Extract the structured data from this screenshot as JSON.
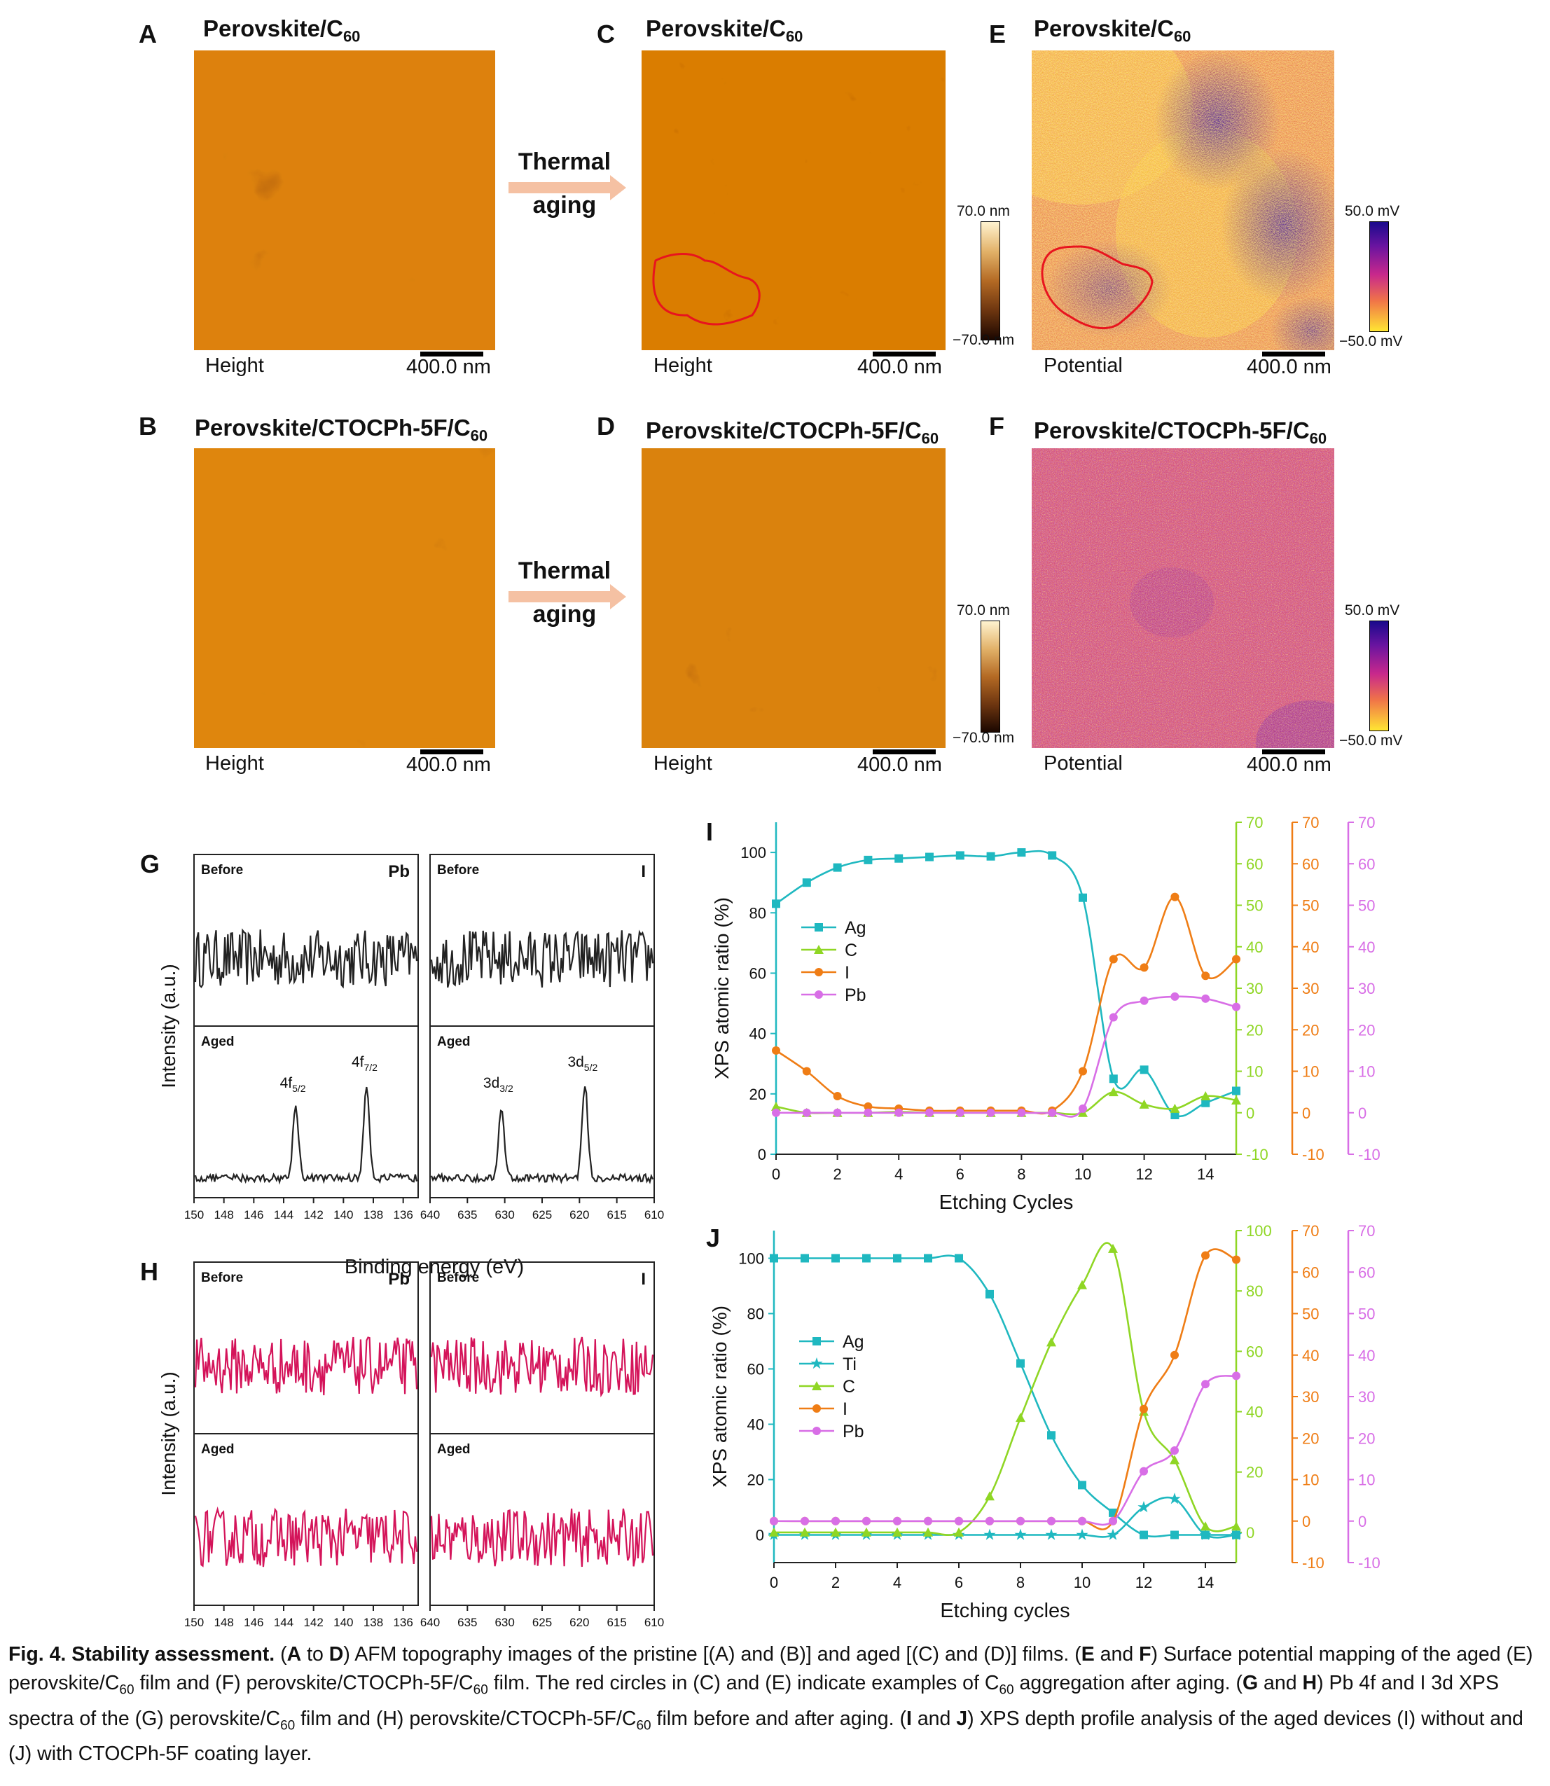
{
  "panels": {
    "A": {
      "letter": "A",
      "title": "Perovskite/C",
      "title_sub": "60",
      "label": "Height",
      "scale": "400.0 nm"
    },
    "B": {
      "letter": "B",
      "title": "Perovskite/CTOCPh-5F/C",
      "title_sub": "60",
      "label": "Height",
      "scale": "400.0 nm"
    },
    "C": {
      "letter": "C",
      "title": "Perovskite/C",
      "title_sub": "60",
      "label": "Height",
      "scale": "400.0 nm"
    },
    "D": {
      "letter": "D",
      "title": "Perovskite/CTOCPh-5F/C",
      "title_sub": "60",
      "label": "Height",
      "scale": "400.0 nm"
    },
    "E": {
      "letter": "E",
      "title": "Perovskite/C",
      "title_sub": "60",
      "label": "Potential",
      "scale": "400.0 nm"
    },
    "F": {
      "letter": "F",
      "title": "Perovskite/CTOCPh-5F/C",
      "title_sub": "60",
      "label": "Potential",
      "scale": "400.0 nm"
    }
  },
  "arrows": {
    "line1": "Thermal",
    "line2": "aging"
  },
  "colorbars": {
    "height": {
      "top": "70.0 nm",
      "bottom": "−70.0 nm"
    },
    "potential": {
      "top": "50.0 mV",
      "bottom": "−50.0 mV"
    }
  },
  "colors": {
    "height_dark": "#2a0f00",
    "height_mid": "#b5651d",
    "height_light": "#fff2c6",
    "pot_blue": "#1a0a8c",
    "pot_magenta": "#c8288c",
    "pot_yellow": "#ffe633",
    "red_circle": "#e8141e",
    "xps_black": "#222222",
    "xps_pink": "#d4145a",
    "ag": "#1fb8c0",
    "c": "#8fd624",
    "i": "#ef7d15",
    "pb": "#d86ee6"
  },
  "chart_data": [
    {
      "id": "G",
      "type": "line",
      "letter": "G",
      "ylabel": "Intensity (a.u.)",
      "xlabel": "Binding energy (eV)",
      "subpanels": [
        {
          "element": "Pb",
          "state": "Before",
          "x_ticks": [
            "150",
            "148",
            "146",
            "144",
            "142",
            "140",
            "138",
            "136"
          ],
          "xlim": [
            150,
            135
          ],
          "peaks": []
        },
        {
          "element": "Pb",
          "state": "Aged",
          "x_ticks": [
            "150",
            "148",
            "146",
            "144",
            "142",
            "140",
            "138",
            "136"
          ],
          "xlim": [
            150,
            135
          ],
          "peaks": [
            {
              "x": 143.2,
              "label": "4f",
              "sub": "5/2"
            },
            {
              "x": 138.4,
              "label": "4f",
              "sub": "7/2"
            }
          ]
        },
        {
          "element": "I",
          "state": "Before",
          "x_ticks": [
            "640",
            "635",
            "630",
            "625",
            "620",
            "615",
            "610"
          ],
          "xlim": [
            640,
            610
          ],
          "peaks": []
        },
        {
          "element": "I",
          "state": "Aged",
          "x_ticks": [
            "640",
            "635",
            "630",
            "625",
            "620",
            "615",
            "610"
          ],
          "xlim": [
            640,
            610
          ],
          "peaks": [
            {
              "x": 630.5,
              "label": "3d",
              "sub": "3/2"
            },
            {
              "x": 619.2,
              "label": "3d",
              "sub": "5/2"
            }
          ]
        }
      ]
    },
    {
      "id": "H",
      "type": "line",
      "letter": "H",
      "ylabel": "Intensity (a.u.)",
      "xlabel": "Binding energy (eV)",
      "subpanels": [
        {
          "element": "Pb",
          "state": "Before",
          "x_ticks": [
            "150",
            "148",
            "146",
            "144",
            "142",
            "140",
            "138",
            "136"
          ],
          "xlim": [
            150,
            135
          ],
          "peaks": []
        },
        {
          "element": "Pb",
          "state": "Aged",
          "x_ticks": [
            "150",
            "148",
            "146",
            "144",
            "142",
            "140",
            "138",
            "136"
          ],
          "xlim": [
            150,
            135
          ],
          "peaks": []
        },
        {
          "element": "I",
          "state": "Before",
          "x_ticks": [
            "640",
            "635",
            "630",
            "625",
            "620",
            "615",
            "610"
          ],
          "xlim": [
            640,
            610
          ],
          "peaks": []
        },
        {
          "element": "I",
          "state": "Aged",
          "x_ticks": [
            "640",
            "635",
            "630",
            "625",
            "620",
            "615",
            "610"
          ],
          "xlim": [
            640,
            610
          ],
          "peaks": []
        }
      ]
    },
    {
      "id": "I",
      "type": "line",
      "letter": "I",
      "xlabel": "Etching Cycles",
      "ylabel": "XPS atomic ratio (%)",
      "xlim": [
        0,
        15
      ],
      "x_ticks": [
        0,
        2,
        4,
        6,
        8,
        10,
        12,
        14
      ],
      "left_axis": {
        "ylim": [
          0,
          110
        ],
        "ticks": [
          0,
          20,
          40,
          60,
          80,
          100
        ]
      },
      "right_axes": [
        {
          "series": "C",
          "ylim": [
            -10,
            70
          ],
          "ticks": [
            -10,
            0,
            10,
            20,
            30,
            40,
            50,
            60,
            70
          ]
        },
        {
          "series": "I",
          "ylim": [
            -10,
            70
          ],
          "ticks": [
            -10,
            0,
            10,
            20,
            30,
            40,
            50,
            60,
            70
          ]
        },
        {
          "series": "Pb",
          "ylim": [
            -10,
            70
          ],
          "ticks": [
            -10,
            0,
            10,
            20,
            30,
            40,
            50,
            60,
            70
          ]
        }
      ],
      "legend": [
        "Ag",
        "C",
        "I",
        "Pb"
      ],
      "series": [
        {
          "name": "Ag",
          "axis": "left",
          "marker": "square",
          "x": [
            0,
            1,
            2,
            3,
            4,
            5,
            6,
            7,
            8,
            9,
            10,
            11,
            12,
            13,
            14,
            15
          ],
          "values": [
            83,
            90,
            95,
            97.5,
            98,
            98.5,
            99,
            98.7,
            100,
            99,
            85,
            25,
            28,
            13,
            17,
            21
          ]
        },
        {
          "name": "C",
          "axis": "right0",
          "marker": "triangle",
          "x": [
            0,
            1,
            2,
            3,
            4,
            5,
            6,
            7,
            8,
            9,
            10,
            11,
            12,
            13,
            14,
            15
          ],
          "values": [
            1.5,
            0,
            0,
            0,
            0.2,
            0,
            0,
            0,
            0,
            0,
            0,
            5,
            2,
            1,
            4,
            3
          ]
        },
        {
          "name": "I",
          "axis": "right1",
          "marker": "circle",
          "x": [
            0,
            1,
            2,
            3,
            4,
            5,
            6,
            7,
            8,
            9,
            10,
            11,
            12,
            13,
            14,
            15
          ],
          "values": [
            15,
            10,
            4,
            1.5,
            1,
            0.5,
            0.5,
            0.5,
            0.5,
            0.5,
            10,
            37,
            35,
            52,
            33,
            37
          ]
        },
        {
          "name": "Pb",
          "axis": "right2",
          "marker": "circle",
          "x": [
            0,
            1,
            2,
            3,
            4,
            5,
            6,
            7,
            8,
            9,
            10,
            11,
            12,
            13,
            14,
            15
          ],
          "values": [
            0,
            0,
            0,
            0,
            0,
            0,
            0,
            0,
            0,
            0,
            1,
            23,
            27,
            28,
            27.5,
            25.5
          ]
        }
      ]
    },
    {
      "id": "J",
      "type": "line",
      "letter": "J",
      "xlabel": "Etching cycles",
      "ylabel": "XPS atomic ratio (%)",
      "xlim": [
        0,
        15
      ],
      "x_ticks": [
        0,
        2,
        4,
        6,
        8,
        10,
        12,
        14
      ],
      "left_axis": {
        "ylim": [
          -10,
          110
        ],
        "ticks": [
          0,
          20,
          40,
          60,
          80,
          100
        ]
      },
      "right_axes": [
        {
          "series": "C",
          "ylim": [
            -10,
            100
          ],
          "ticks": [
            0,
            20,
            40,
            60,
            80,
            100
          ]
        },
        {
          "series": "I",
          "ylim": [
            -10,
            70
          ],
          "ticks": [
            -10,
            0,
            10,
            20,
            30,
            40,
            50,
            60,
            70
          ]
        },
        {
          "series": "Pb",
          "ylim": [
            -10,
            70
          ],
          "ticks": [
            -10,
            0,
            10,
            20,
            30,
            40,
            50,
            60,
            70
          ]
        }
      ],
      "legend": [
        "Ag",
        "Ti",
        "C",
        "I",
        "Pb"
      ],
      "series": [
        {
          "name": "Ag",
          "axis": "left",
          "marker": "square",
          "x": [
            0,
            1,
            2,
            3,
            4,
            5,
            6,
            7,
            8,
            9,
            10,
            11,
            12,
            13,
            14,
            15
          ],
          "values": [
            100,
            100,
            100,
            100,
            100,
            100,
            100,
            87,
            62,
            36,
            18,
            8,
            0,
            0,
            0,
            0
          ]
        },
        {
          "name": "Ti",
          "axis": "left",
          "marker": "star",
          "x": [
            0,
            1,
            2,
            3,
            4,
            5,
            6,
            7,
            8,
            9,
            10,
            11,
            12,
            13,
            14,
            15
          ],
          "values": [
            0,
            0,
            0,
            0,
            0,
            0,
            0,
            0,
            0,
            0,
            0,
            0,
            10,
            13,
            0,
            0
          ]
        },
        {
          "name": "C",
          "axis": "right0",
          "marker": "triangle",
          "x": [
            0,
            1,
            2,
            3,
            4,
            5,
            6,
            7,
            8,
            9,
            10,
            11,
            12,
            13,
            14,
            15
          ],
          "values": [
            0,
            0,
            0,
            0,
            0,
            0,
            0,
            12,
            38,
            63,
            82,
            94,
            40,
            24,
            2,
            2
          ]
        },
        {
          "name": "I",
          "axis": "right1",
          "marker": "circle",
          "x": [
            0,
            1,
            2,
            3,
            4,
            5,
            6,
            7,
            8,
            9,
            10,
            11,
            12,
            13,
            14,
            15
          ],
          "values": [
            0,
            0,
            0,
            0,
            0,
            0,
            0,
            0,
            0,
            0,
            0,
            0,
            27,
            40,
            64,
            63
          ]
        },
        {
          "name": "Pb",
          "axis": "right2",
          "marker": "circle",
          "x": [
            0,
            1,
            2,
            3,
            4,
            5,
            6,
            7,
            8,
            9,
            10,
            11,
            12,
            13,
            14,
            15
          ],
          "values": [
            0,
            0,
            0,
            0,
            0,
            0,
            0,
            0,
            0,
            0,
            0,
            0,
            12,
            17,
            33,
            35
          ]
        }
      ]
    }
  ],
  "caption": {
    "fig": "Fig. 4.",
    "title": "Stability assessment.",
    "body_html": " (<b>A</b> to <b>D</b>) AFM topography images of the pristine [(A) and (B)] and aged [(C) and (D)] films. (<b>E</b> and <b>F</b>) Surface potential mapping of the aged (E) perovskite/C<sub>60</sub> film and (F) perovskite/CTOCPh-5F/C<sub>60</sub> film. The red circles in (C) and (E) indicate examples of C<sub>60</sub> aggregation after aging. (<b>G</b> and <b>H</b>) Pb 4f and I 3d XPS spectra of the (G) perovskite/C<sub>60</sub> film and (H) perovskite/CTOCPh-5F/C<sub>60</sub> film before and after aging. (<b>I</b> and <b>J</b>) XPS depth profile analysis of the aged devices (I) without and (J) with CTOCPh-5F coating layer."
  }
}
